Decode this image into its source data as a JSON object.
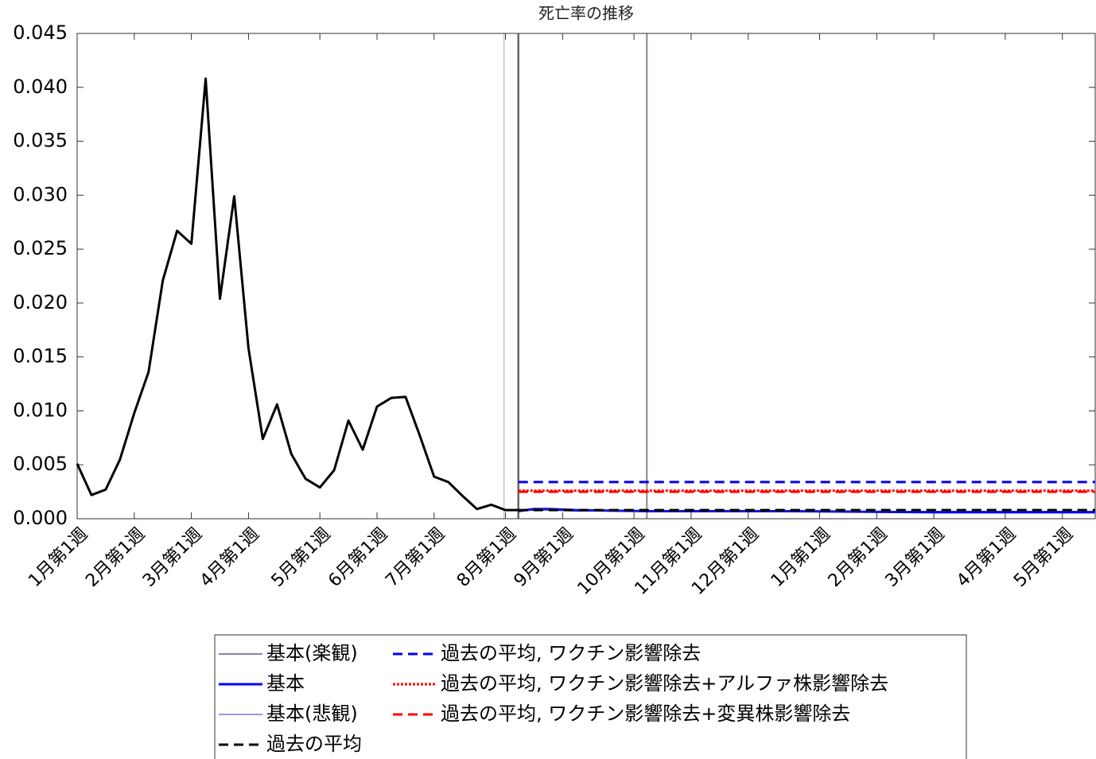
{
  "chart_data": {
    "type": "line",
    "title": "死亡率の推移",
    "xlim": [
      0,
      71.3
    ],
    "xticks": [
      {
        "value": 0,
        "label": "1月第1週"
      },
      {
        "value": 4,
        "label": "2月第1週"
      },
      {
        "value": 8,
        "label": "3月第1週"
      },
      {
        "value": 12,
        "label": "4月第1週"
      },
      {
        "value": 17,
        "label": "5月第1週"
      },
      {
        "value": 21,
        "label": "6月第1週"
      },
      {
        "value": 25,
        "label": "7月第1週"
      },
      {
        "value": 30,
        "label": "8月第1週"
      },
      {
        "value": 34,
        "label": "9月第1週"
      },
      {
        "value": 39,
        "label": "10月第1週"
      },
      {
        "value": 43,
        "label": "11月第1週"
      },
      {
        "value": 47,
        "label": "12月第1週"
      },
      {
        "value": 52,
        "label": "1月第1週"
      },
      {
        "value": 56,
        "label": "2月第1週"
      },
      {
        "value": 60,
        "label": "3月第1週"
      },
      {
        "value": 65,
        "label": "4月第1週"
      },
      {
        "value": 69,
        "label": "5月第1週"
      }
    ],
    "ylim": [
      0,
      0.045
    ],
    "yticks": [
      {
        "value": 0,
        "label": "0.000"
      },
      0.005,
      {
        "value": 0.01,
        "label": "0.010"
      },
      0.015,
      {
        "value": 0.02,
        "label": "0.020"
      },
      0.025,
      {
        "value": 0.03,
        "label": "0.030"
      },
      0.035,
      {
        "value": 0.04,
        "label": "0.040"
      },
      0.045
    ],
    "reference_lines_x": [
      29.9,
      30.9,
      39.9
    ],
    "legend": "bottom",
    "actual": {
      "color": "#000000",
      "x": [
        0,
        1,
        2,
        3,
        4,
        5,
        6,
        7,
        8,
        9,
        10,
        11,
        12,
        13,
        14,
        15,
        16,
        17,
        18,
        19,
        20,
        21,
        22,
        23,
        24,
        25,
        26,
        27,
        28,
        29,
        30,
        31
      ],
      "values": [
        0.0051,
        0.0022,
        0.0027,
        0.0055,
        0.0098,
        0.0136,
        0.0221,
        0.0267,
        0.0255,
        0.0408,
        0.0204,
        0.0299,
        0.0158,
        0.0074,
        0.0106,
        0.006,
        0.0037,
        0.0029,
        0.0045,
        0.0091,
        0.0064,
        0.0104,
        0.0112,
        0.0113,
        0.0077,
        0.0039,
        0.0034,
        0.0021,
        0.0009,
        0.0013,
        0.0008,
        0.0008
      ]
    },
    "series": [
      {
        "name": "基本(楽観)",
        "color": "#000080",
        "dash": "solid",
        "x": [
          30.9,
          32,
          33,
          35,
          40,
          50,
          60,
          71.3
        ],
        "values": [
          0.0007,
          0.0008,
          0.0008,
          0.0007,
          0.0007,
          0.0007,
          0.0006,
          0.0006
        ]
      },
      {
        "name": "基本",
        "color": "#0000ff",
        "dash": "solid",
        "x": [
          30.9,
          32,
          33,
          35,
          40,
          50,
          60,
          71.3
        ],
        "values": [
          0.0007,
          0.0009,
          0.0009,
          0.0008,
          0.0007,
          0.0007,
          0.0006,
          0.0006
        ]
      },
      {
        "name": "基本(悲観)",
        "color": "#3030b0",
        "dash": "solid",
        "x": [
          30.9,
          32,
          33,
          35,
          40,
          50,
          60,
          71.3
        ],
        "values": [
          0.0007,
          0.0009,
          0.0009,
          0.0008,
          0.0007,
          0.0007,
          0.0007,
          0.0007
        ]
      },
      {
        "name": "過去の平均",
        "color": "#000000",
        "dash": "dashed",
        "x": [
          30.9,
          71.3
        ],
        "values": [
          0.0008,
          0.0008
        ]
      },
      {
        "name": "過去の平均, ワクチン影響除去",
        "color": "#0000ff",
        "dash": "dashed",
        "x": [
          30.9,
          71.3
        ],
        "values": [
          0.0034,
          0.0034
        ]
      },
      {
        "name": "過去の平均, ワクチン影響除去+アルファ株影響除去",
        "color": "#ff0000",
        "dash": "dotted",
        "x": [
          30.9,
          71.3
        ],
        "values": [
          0.0026,
          0.0026
        ]
      },
      {
        "name": "過去の平均, ワクチン影響除去+変異株影響除去",
        "color": "#ff0000",
        "dash": "dashed",
        "x": [
          30.9,
          71.3
        ],
        "values": [
          0.0025,
          0.0025
        ]
      }
    ]
  }
}
